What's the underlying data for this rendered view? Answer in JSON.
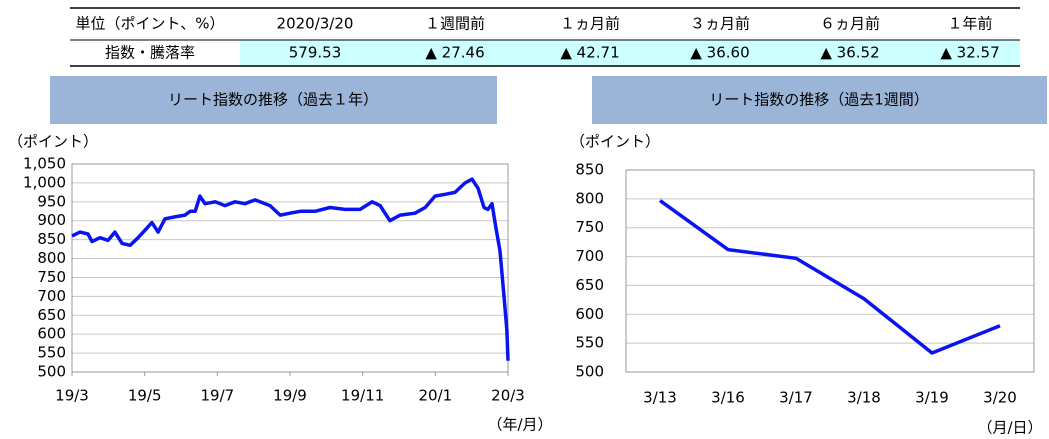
{
  "table": {
    "header": [
      "単位（ポイント、%）",
      "2020/3/20",
      "１週間前",
      "１ヵ月前",
      "３ヵ月前",
      "６ヵ月前",
      "１年前"
    ],
    "rows": [
      [
        "指数・騰落率",
        "579.53",
        "▲ 27.46",
        "▲ 42.71",
        "▲ 36.60",
        "▲ 36.52",
        "▲ 32.57"
      ]
    ]
  },
  "chart_data": [
    {
      "type": "line",
      "title": "リート指数の推移（過去１年）",
      "y_label": "（ポイント）",
      "x_label": "（年/月）",
      "color": "#0a14f0",
      "grid": true,
      "x": [
        0,
        0.22,
        0.44,
        0.55,
        0.77,
        0.99,
        1.18,
        1.38,
        1.6,
        1.82,
        2.01,
        2.2,
        2.37,
        2.56,
        2.83,
        3.11,
        3.25,
        3.39,
        3.52,
        3.66,
        3.94,
        4.21,
        4.49,
        4.76,
        5.04,
        5.45,
        5.73,
        6,
        6.28,
        6.69,
        7.1,
        7.51,
        7.93,
        8.26,
        8.48,
        8.75,
        9.03,
        9.44,
        9.72,
        9.99,
        10.27,
        10.54,
        10.82,
        11.01,
        11.18,
        11.34,
        11.45,
        11.56,
        11.67,
        11.78,
        11.89,
        11.97,
        12
      ],
      "values": [
        860,
        870,
        865,
        845,
        855,
        848,
        870,
        840,
        835,
        855,
        875,
        895,
        870,
        905,
        910,
        915,
        925,
        925,
        965,
        945,
        950,
        940,
        950,
        945,
        955,
        940,
        915,
        920,
        925,
        925,
        935,
        930,
        930,
        950,
        940,
        900,
        915,
        920,
        935,
        965,
        970,
        975,
        1000,
        1010,
        985,
        935,
        930,
        945,
        880,
        820,
        700,
        610,
        530
      ],
      "xlim": [
        0,
        12
      ],
      "xticks": [
        {
          "value": 0,
          "label": "19/3"
        },
        {
          "value": 2,
          "label": "19/5"
        },
        {
          "value": 4,
          "label": "19/7"
        },
        {
          "value": 6,
          "label": "19/9"
        },
        {
          "value": 8,
          "label": "19/11"
        },
        {
          "value": 10,
          "label": "20/1"
        },
        {
          "value": 12,
          "label": "20/3"
        }
      ],
      "ylim": [
        500,
        1050
      ],
      "yticks": [
        500,
        550,
        600,
        650,
        700,
        750,
        800,
        850,
        900,
        950,
        {
          "value": 1000,
          "label": "1,000"
        },
        {
          "value": 1050,
          "label": "1,050"
        }
      ]
    },
    {
      "type": "line",
      "title": "リート指数の推移（過去1週間）",
      "y_label": "（ポイント）",
      "x_label": "（月/日）",
      "color": "#0a14f0",
      "grid": true,
      "categories": [
        "3/13",
        "3/16",
        "3/17",
        "3/18",
        "3/19",
        "3/20"
      ],
      "values": [
        797,
        712,
        697,
        627,
        533,
        580
      ],
      "ylim": [
        500,
        850
      ],
      "yticks": [
        500,
        550,
        600,
        650,
        700,
        750,
        800,
        850
      ]
    }
  ]
}
